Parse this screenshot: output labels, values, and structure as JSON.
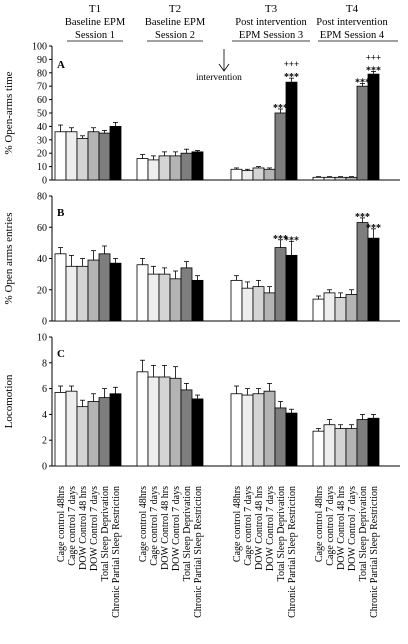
{
  "chart_data": {
    "type": "bar",
    "groups": [
      {
        "id": "T1",
        "title": "T1",
        "subtitle": [
          "Baseline EPM",
          "Session 1"
        ]
      },
      {
        "id": "T2",
        "title": "T2",
        "subtitle": [
          "Baseline EPM",
          "Session 2"
        ]
      },
      {
        "id": "T3",
        "title": "T3",
        "subtitle": [
          "Post intervention",
          "EPM Session 3"
        ]
      },
      {
        "id": "T4",
        "title": "T4",
        "subtitle": [
          "Post intervention",
          "EPM Session 4"
        ]
      }
    ],
    "series": [
      {
        "name": "Cage control 48hrs",
        "fill": "#ffffff"
      },
      {
        "name": "Cage control 7 days",
        "fill": "#eeeeee"
      },
      {
        "name": "DOW Control 48 hrs",
        "fill": "#d4d4d4"
      },
      {
        "name": "DOW Control 7 days",
        "fill": "#b4b4b4"
      },
      {
        "name": "Total Sleep Deprivation",
        "fill": "#7e7e7e"
      },
      {
        "name": "Chronic Partial Sleep Restriction",
        "fill": "#000000"
      }
    ],
    "panels": [
      {
        "letter": "A",
        "ylabel": "% Open-arms time",
        "ylim": [
          0,
          100
        ],
        "yticks": [
          0,
          10,
          20,
          30,
          40,
          50,
          60,
          70,
          80,
          90,
          100
        ],
        "annotation": "intervention",
        "values": [
          [
            36,
            36,
            31,
            36,
            35,
            40
          ],
          [
            16,
            15,
            18,
            18,
            20,
            21
          ],
          [
            8,
            7,
            9,
            8,
            50,
            73
          ],
          [
            2,
            2,
            2,
            2,
            70,
            79
          ]
        ],
        "errors": [
          [
            5,
            3,
            2,
            3,
            2,
            3
          ],
          [
            3,
            3,
            3,
            3,
            3,
            1
          ],
          [
            1,
            1,
            1,
            1,
            3,
            3
          ],
          [
            0.5,
            0.5,
            0.5,
            0.5,
            2,
            2
          ]
        ],
        "marks": [
          {
            "group": 2,
            "series": 4,
            "lines": [
              "***"
            ]
          },
          {
            "group": 2,
            "series": 5,
            "lines": [
              "+++",
              "***"
            ]
          },
          {
            "group": 3,
            "series": 4,
            "lines": [
              "***"
            ]
          },
          {
            "group": 3,
            "series": 5,
            "lines": [
              "+++",
              "***"
            ]
          }
        ]
      },
      {
        "letter": "B",
        "ylabel": "% Open arms entries",
        "ylim": [
          0,
          80
        ],
        "yticks": [
          0,
          20,
          40,
          60,
          80
        ],
        "values": [
          [
            43,
            35,
            35,
            39,
            43,
            37
          ],
          [
            36,
            30,
            30,
            27,
            34,
            26
          ],
          [
            26,
            21,
            22,
            18,
            47,
            42
          ],
          [
            14,
            18,
            15,
            17,
            63,
            53
          ]
        ],
        "errors": [
          [
            4,
            7,
            5,
            6,
            5,
            3
          ],
          [
            4,
            5,
            4,
            5,
            4,
            3
          ],
          [
            3,
            4,
            4,
            4,
            5,
            9
          ],
          [
            2,
            2,
            3,
            3,
            3,
            6
          ]
        ],
        "marks": [
          {
            "group": 2,
            "series": 4,
            "lines": [
              "***"
            ]
          },
          {
            "group": 2,
            "series": 5,
            "lines": [
              "***"
            ]
          },
          {
            "group": 3,
            "series": 4,
            "lines": [
              "***"
            ]
          },
          {
            "group": 3,
            "series": 5,
            "lines": [
              "***"
            ]
          }
        ]
      },
      {
        "letter": "C",
        "ylabel": "Locomotion",
        "ylim": [
          0,
          10
        ],
        "yticks": [
          0,
          2,
          4,
          6,
          8,
          10
        ],
        "values": [
          [
            5.7,
            5.8,
            4.6,
            5.0,
            5.3,
            5.6
          ],
          [
            7.3,
            6.9,
            6.9,
            6.8,
            5.9,
            5.2
          ],
          [
            5.6,
            5.5,
            5.6,
            5.8,
            4.5,
            4.1
          ],
          [
            2.7,
            3.2,
            2.9,
            2.9,
            3.6,
            3.7
          ]
        ],
        "errors": [
          [
            0.5,
            0.4,
            0.5,
            0.6,
            0.7,
            0.5
          ],
          [
            0.9,
            0.9,
            0.9,
            0.9,
            0.5,
            0.3
          ],
          [
            0.6,
            0.5,
            0.4,
            0.6,
            0.5,
            0.3
          ],
          [
            0.2,
            0.4,
            0.3,
            0.3,
            0.4,
            0.3
          ]
        ],
        "marks": []
      }
    ]
  }
}
